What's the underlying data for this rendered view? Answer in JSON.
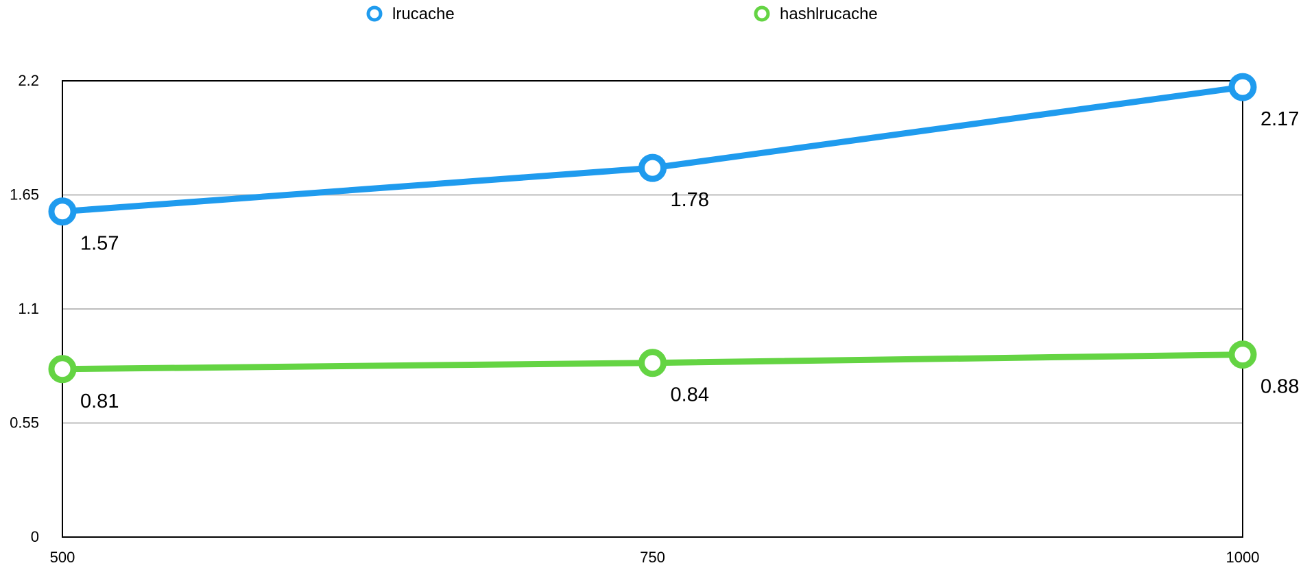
{
  "chart_data": {
    "type": "line",
    "x": [
      500,
      750,
      1000
    ],
    "series": [
      {
        "name": "lrucache",
        "values": [
          1.57,
          1.78,
          2.17
        ],
        "color": "#1f9bee"
      },
      {
        "name": "hashlrucache",
        "values": [
          0.81,
          0.84,
          0.88
        ],
        "color": "#64d443"
      }
    ],
    "x_ticks": [
      "500",
      "750",
      "1000"
    ],
    "y_ticks": [
      {
        "value": 0,
        "label": "0"
      },
      {
        "value": 0.55,
        "label": "0.55"
      },
      {
        "value": 1.1,
        "label": "1.1"
      },
      {
        "value": 1.65,
        "label": "1.65"
      },
      {
        "value": 2.2,
        "label": "2.2"
      }
    ],
    "xlim": [
      500,
      1000
    ],
    "ylim": [
      0,
      2.2
    ],
    "title": "",
    "xlabel": "",
    "ylabel": "",
    "grid": "horizontal",
    "legend": "top-center",
    "data_labels": true,
    "gridline_color": "#bdbdbd"
  }
}
